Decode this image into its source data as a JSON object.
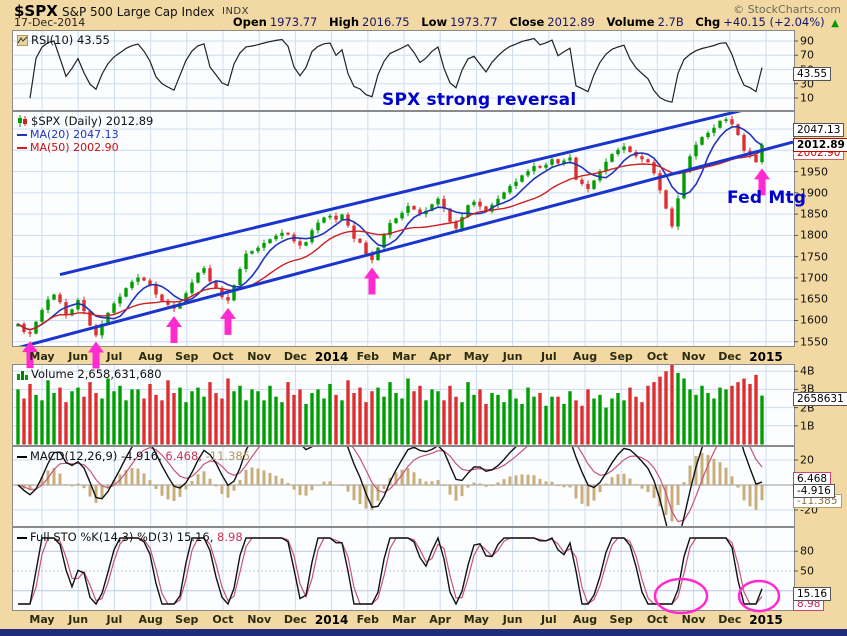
{
  "header": {
    "symbol": "$SPX",
    "index_name": "S&P 500 Large Cap Index",
    "exchange": "INDX",
    "copyright": "© StockCharts.com",
    "date": "17-Dec-2014",
    "quote": {
      "open_label": "Open",
      "open": "1973.77",
      "high_label": "High",
      "high": "2016.75",
      "low_label": "Low",
      "low": "1973.77",
      "close_label": "Close",
      "close": "2012.89",
      "volume_label": "Volume",
      "volume": "2.7B",
      "chg_label": "Chg",
      "chg": "+40.15 (+2.04%)",
      "chg_arrow": "▲"
    }
  },
  "rsi_panel": {
    "legend": "RSI(10) 43.55",
    "callout": "43.55",
    "axis": [
      "90",
      "70",
      "50",
      "30",
      "10"
    ]
  },
  "price_panel": {
    "legend_symbol": "$SPX (Daily) 2012.89",
    "legend_ma20": "MA(20) 2047.13",
    "legend_ma50": "MA(50) 2002.90",
    "callout_ma20": "2047.13",
    "callout_close": "2012.89",
    "callout_ma50": "2002.90",
    "annotation_reversal": "SPX strong reversal",
    "annotation_fed_mtg": "Fed Mtg",
    "axis": [
      "1950",
      "1900",
      "1850",
      "1800",
      "1750",
      "1700",
      "1650",
      "1600",
      "1550"
    ]
  },
  "volume_panel": {
    "legend": "Volume 2,658,631,680",
    "callout": "2658631",
    "axis": [
      "4B",
      "3B",
      "2B",
      "1B"
    ]
  },
  "macd_panel": {
    "legend_name": "MACD(12,26,9)",
    "legend_v1": "-4.916,",
    "legend_v2": "6.468,",
    "legend_v3": "-11.385",
    "callout_signal": "6.468",
    "callout_macd": "-4.916",
    "callout_hist": "-11.385",
    "axis": [
      "20",
      "-20"
    ]
  },
  "sto_panel": {
    "legend_name": "Full STO %K(14,3) %D(3)",
    "legend_v1": "15.16,",
    "legend_v2": "8.98",
    "callout_k": "15.16",
    "callout_d": "8.98",
    "axis": [
      "80",
      "50"
    ]
  },
  "timeline": {
    "months": [
      "May",
      "Jun",
      "Jul",
      "Aug",
      "Sep",
      "Oct",
      "Nov",
      "Dec",
      "2014",
      "Feb",
      "Mar",
      "Apr",
      "May",
      "Jun",
      "Jul",
      "Aug",
      "Sep",
      "Oct",
      "Nov",
      "Dec",
      "2015"
    ]
  },
  "colors": {
    "bg": "#F2D9A3",
    "annotation_blue": "#0000CC",
    "magenta": "#FF2BD1",
    "up": "#009E00",
    "down": "#DD2F2F",
    "ma20": "#2233BB",
    "ma50": "#CC2222",
    "channel": "#1A35CC",
    "signal": "#C5547A",
    "hist": "#C9AE7C",
    "grid": "#CFDDEF",
    "bottom_bar": "#1F2C7B"
  },
  "chart_data": {
    "type": "candlestick+indicators",
    "title": "$SPX S&P 500 Large Cap Index (Daily)",
    "date_range": "May 2013 - Dec 2014",
    "x_months": [
      "May",
      "Jun",
      "Jul",
      "Aug",
      "Sep",
      "Oct",
      "Nov",
      "Dec",
      "2014",
      "Feb",
      "Mar",
      "Apr",
      "May",
      "Jun",
      "Jul",
      "Aug",
      "Sep",
      "Oct",
      "Nov",
      "Dec",
      "2015"
    ],
    "ohlc_last": {
      "open": 1973.77,
      "high": 2016.75,
      "low": 1973.77,
      "close": 2012.89,
      "volume": "2.7B",
      "chg": "+40.15 (+2.04%)"
    },
    "price": {
      "ylim": [
        1540,
        2090
      ],
      "closes": [
        1592,
        1573,
        1569,
        1597,
        1625,
        1649,
        1661,
        1643,
        1612,
        1626,
        1648,
        1622,
        1588,
        1565,
        1592,
        1618,
        1640,
        1656,
        1676,
        1691,
        1701,
        1694,
        1684,
        1661,
        1646,
        1637,
        1628,
        1642,
        1664,
        1689,
        1712,
        1723,
        1692,
        1676,
        1655,
        1647,
        1683,
        1721,
        1757,
        1763,
        1771,
        1782,
        1791,
        1799,
        1806,
        1802,
        1786,
        1776,
        1784,
        1812,
        1830,
        1842,
        1846,
        1837,
        1849,
        1823,
        1792,
        1783,
        1756,
        1742,
        1771,
        1801,
        1829,
        1840,
        1853,
        1869,
        1861,
        1850,
        1858,
        1873,
        1886,
        1863,
        1832,
        1816,
        1843,
        1871,
        1879,
        1868,
        1856,
        1872,
        1886,
        1901,
        1916,
        1926,
        1941,
        1951,
        1963,
        1959,
        1966,
        1979,
        1969,
        1976,
        1983,
        1931,
        1921,
        1909,
        1929,
        1951,
        1973,
        1991,
        2001,
        2009,
        1996,
        1986,
        1979,
        1972,
        1946,
        1906,
        1863,
        1821,
        1887,
        1951,
        1986,
        2013,
        2031,
        2041,
        2053,
        2069,
        2073,
        2061,
        2036,
        1999,
        1989,
        1972,
        2012.89
      ]
    },
    "volume": {
      "unit": "B",
      "ylim": [
        0,
        4.5
      ],
      "last": 2658631680,
      "values": [
        3.0,
        2.5,
        3.3,
        2.7,
        2.4,
        3.5,
        2.8,
        3.1,
        2.3,
        2.9,
        3.1,
        2.6,
        3.4,
        2.8,
        2.5,
        3.6,
        2.9,
        3.2,
        2.4,
        3.0,
        3.0,
        2.5,
        3.3,
        2.7,
        2.4,
        3.5,
        2.8,
        3.1,
        2.3,
        2.9,
        3.1,
        2.6,
        3.4,
        2.8,
        2.5,
        3.6,
        2.9,
        3.2,
        2.4,
        3.0,
        2.9,
        2.4,
        3.2,
        2.6,
        2.3,
        3.4,
        2.7,
        3.0,
        2.2,
        2.8,
        3.0,
        2.5,
        3.3,
        2.7,
        2.4,
        3.5,
        2.8,
        3.1,
        2.3,
        2.9,
        3.1,
        2.6,
        3.4,
        2.8,
        2.5,
        3.6,
        2.9,
        3.2,
        2.4,
        3.0,
        2.9,
        2.4,
        3.2,
        2.6,
        2.3,
        3.4,
        2.7,
        3.0,
        2.2,
        2.8,
        2.7,
        2.3,
        3.0,
        2.5,
        2.2,
        3.1,
        2.6,
        2.8,
        2.1,
        2.6,
        2.6,
        2.2,
        2.9,
        2.4,
        2.1,
        3.0,
        2.5,
        2.7,
        2.0,
        2.5,
        2.8,
        2.4,
        3.1,
        2.6,
        2.3,
        3.2,
        3.4,
        3.7,
        4.0,
        4.35,
        3.9,
        3.6,
        3.0,
        2.7,
        3.2,
        2.8,
        2.5,
        3.1,
        3.0,
        3.2,
        3.4,
        3.6,
        3.3,
        3.8,
        2.66
      ]
    },
    "indicators": {
      "rsi_period": 10,
      "rsi_last": 43.55,
      "ma20_last": 2047.13,
      "ma50_last": 2002.9,
      "macd_params": [
        12,
        26,
        9
      ],
      "macd_last": [
        -4.916,
        6.468,
        -11.385
      ],
      "sto_params": "%K(14,3) %D(3)",
      "sto_last": [
        15.16,
        8.98
      ]
    },
    "channel": {
      "lower": {
        "i1": 0,
        "p1": 1536,
        "i2": 124,
        "p2": 2000
      },
      "upper": {
        "i1": 7,
        "p1": 1708,
        "i2": 124,
        "p2": 2105
      }
    },
    "arrows_at": [
      2,
      13,
      26,
      35,
      59,
      124
    ],
    "sto_circles_at": [
      110.5,
      123.5
    ]
  }
}
